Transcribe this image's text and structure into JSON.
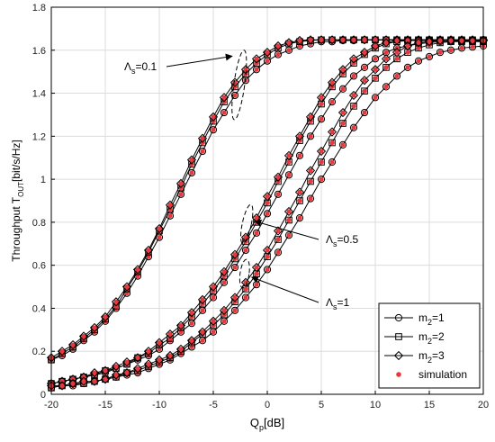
{
  "chart_data": {
    "type": "line",
    "title": "",
    "xlabel": "Q_p[dB]",
    "ylabel": "Throughput T_OUT[bit/s/Hz]",
    "xlim": [
      -20,
      20
    ],
    "ylim": [
      0,
      1.8
    ],
    "xticks": [
      -20,
      -15,
      -10,
      -5,
      0,
      5,
      10,
      15,
      20
    ],
    "yticks": [
      0,
      0.2,
      0.4,
      0.6,
      0.8,
      1,
      1.2,
      1.4,
      1.6,
      1.8
    ],
    "grid": true,
    "legend_position": "bottom-right",
    "x": [
      -20,
      -19,
      -18,
      -17,
      -16,
      -15,
      -14,
      -13,
      -12,
      -11,
      -10,
      -9,
      -8,
      -7,
      -6,
      -5,
      -4,
      -3,
      -2,
      -1,
      0,
      1,
      2,
      3,
      4,
      5,
      6,
      7,
      8,
      9,
      10,
      11,
      12,
      13,
      14,
      15,
      16,
      17,
      18,
      19,
      20
    ],
    "series": [
      {
        "group": "Λs=0.1",
        "name": "m2=1",
        "marker": "circle",
        "values": [
          0.16,
          0.18,
          0.21,
          0.25,
          0.29,
          0.34,
          0.4,
          0.47,
          0.55,
          0.64,
          0.73,
          0.83,
          0.93,
          1.03,
          1.13,
          1.23,
          1.31,
          1.39,
          1.46,
          1.51,
          1.55,
          1.58,
          1.6,
          1.62,
          1.63,
          1.64,
          1.64,
          1.645,
          1.645,
          1.648,
          1.648,
          1.648,
          1.648,
          1.648,
          1.648,
          1.648,
          1.648,
          1.648,
          1.648,
          1.648,
          1.648
        ]
      },
      {
        "group": "Λs=0.1",
        "name": "m2=2",
        "marker": "square",
        "values": [
          0.16,
          0.19,
          0.22,
          0.26,
          0.3,
          0.35,
          0.41,
          0.49,
          0.57,
          0.66,
          0.76,
          0.86,
          0.96,
          1.07,
          1.17,
          1.27,
          1.36,
          1.43,
          1.49,
          1.54,
          1.58,
          1.61,
          1.63,
          1.64,
          1.645,
          1.648,
          1.648,
          1.648,
          1.648,
          1.648,
          1.648,
          1.648,
          1.648,
          1.648,
          1.648,
          1.648,
          1.648,
          1.648,
          1.648,
          1.648,
          1.648
        ]
      },
      {
        "group": "Λs=0.1",
        "name": "m2=3",
        "marker": "diamond",
        "values": [
          0.17,
          0.2,
          0.23,
          0.27,
          0.31,
          0.36,
          0.43,
          0.5,
          0.58,
          0.67,
          0.77,
          0.88,
          0.98,
          1.09,
          1.19,
          1.29,
          1.38,
          1.45,
          1.51,
          1.56,
          1.59,
          1.62,
          1.635,
          1.645,
          1.648,
          1.648,
          1.648,
          1.648,
          1.648,
          1.648,
          1.648,
          1.648,
          1.648,
          1.648,
          1.648,
          1.648,
          1.648,
          1.648,
          1.648,
          1.648,
          1.648
        ]
      },
      {
        "group": "Λs=0.5",
        "name": "m2=1",
        "marker": "circle",
        "values": [
          0.05,
          0.06,
          0.07,
          0.08,
          0.09,
          0.1,
          0.12,
          0.14,
          0.16,
          0.18,
          0.21,
          0.25,
          0.29,
          0.33,
          0.39,
          0.45,
          0.52,
          0.59,
          0.67,
          0.75,
          0.84,
          0.93,
          1.02,
          1.11,
          1.2,
          1.28,
          1.36,
          1.42,
          1.48,
          1.52,
          1.56,
          1.59,
          1.61,
          1.62,
          1.63,
          1.635,
          1.64,
          1.64,
          1.642,
          1.642,
          1.642
        ]
      },
      {
        "group": "Λs=0.5",
        "name": "m2=2",
        "marker": "square",
        "values": [
          0.05,
          0.06,
          0.07,
          0.08,
          0.09,
          0.11,
          0.12,
          0.14,
          0.17,
          0.19,
          0.23,
          0.26,
          0.31,
          0.36,
          0.42,
          0.48,
          0.55,
          0.63,
          0.71,
          0.8,
          0.89,
          0.99,
          1.08,
          1.18,
          1.27,
          1.35,
          1.43,
          1.49,
          1.54,
          1.58,
          1.61,
          1.63,
          1.64,
          1.645,
          1.645,
          1.645,
          1.645,
          1.645,
          1.645,
          1.645,
          1.645
        ]
      },
      {
        "group": "Λs=0.5",
        "name": "m2=3",
        "marker": "diamond",
        "values": [
          0.05,
          0.06,
          0.07,
          0.08,
          0.1,
          0.11,
          0.13,
          0.15,
          0.17,
          0.2,
          0.24,
          0.28,
          0.32,
          0.38,
          0.44,
          0.5,
          0.57,
          0.65,
          0.73,
          0.82,
          0.92,
          1.01,
          1.11,
          1.2,
          1.29,
          1.38,
          1.45,
          1.51,
          1.56,
          1.59,
          1.62,
          1.635,
          1.645,
          1.645,
          1.645,
          1.645,
          1.645,
          1.645,
          1.645,
          1.645,
          1.645
        ]
      },
      {
        "group": "Λs=1",
        "name": "m2=1",
        "marker": "circle",
        "values": [
          0.03,
          0.04,
          0.04,
          0.05,
          0.06,
          0.07,
          0.08,
          0.09,
          0.1,
          0.12,
          0.14,
          0.16,
          0.19,
          0.22,
          0.25,
          0.29,
          0.34,
          0.39,
          0.45,
          0.51,
          0.58,
          0.66,
          0.74,
          0.82,
          0.91,
          1.0,
          1.08,
          1.16,
          1.24,
          1.31,
          1.38,
          1.43,
          1.48,
          1.52,
          1.55,
          1.57,
          1.59,
          1.6,
          1.61,
          1.615,
          1.62
        ]
      },
      {
        "group": "Λs=1",
        "name": "m2=2",
        "marker": "square",
        "values": [
          0.03,
          0.04,
          0.05,
          0.05,
          0.06,
          0.07,
          0.08,
          0.1,
          0.11,
          0.13,
          0.15,
          0.17,
          0.2,
          0.24,
          0.28,
          0.32,
          0.37,
          0.43,
          0.49,
          0.56,
          0.64,
          0.72,
          0.81,
          0.9,
          0.99,
          1.08,
          1.17,
          1.26,
          1.34,
          1.41,
          1.47,
          1.52,
          1.56,
          1.59,
          1.61,
          1.625,
          1.635,
          1.64,
          1.64,
          1.64,
          1.64
        ]
      },
      {
        "group": "Λs=1",
        "name": "m2=3",
        "marker": "diamond",
        "values": [
          0.04,
          0.04,
          0.05,
          0.06,
          0.06,
          0.07,
          0.09,
          0.1,
          0.12,
          0.14,
          0.16,
          0.18,
          0.21,
          0.25,
          0.29,
          0.34,
          0.39,
          0.45,
          0.52,
          0.59,
          0.67,
          0.76,
          0.85,
          0.94,
          1.04,
          1.13,
          1.22,
          1.31,
          1.39,
          1.46,
          1.51,
          1.56,
          1.59,
          1.62,
          1.635,
          1.64,
          1.645,
          1.645,
          1.645,
          1.645,
          1.645
        ]
      }
    ],
    "legend": [
      {
        "label_base": "m",
        "label_sub": "2",
        "label_tail": "=1",
        "marker": "circle"
      },
      {
        "label_base": "m",
        "label_sub": "2",
        "label_tail": "=2",
        "marker": "square"
      },
      {
        "label_base": "m",
        "label_sub": "2",
        "label_tail": "=3",
        "marker": "diamond"
      },
      {
        "label_base": "simulation",
        "label_sub": "",
        "label_tail": "",
        "marker": "dot"
      }
    ],
    "annotations": [
      {
        "base": "Λ",
        "sub": "s",
        "tail": "=0.1",
        "x_data": -2.6,
        "y_data": 1.43
      },
      {
        "base": "Λ",
        "sub": "s",
        "tail": "=0.5",
        "x_data": -1.9,
        "y_data": 0.75
      },
      {
        "base": "Λ",
        "sub": "s",
        "tail": "=1",
        "x_data": -2.1,
        "y_data": 0.54
      }
    ],
    "colors": {
      "line": "#000000",
      "simulation": "#e8383d",
      "grid": "#dcdcdc"
    }
  }
}
